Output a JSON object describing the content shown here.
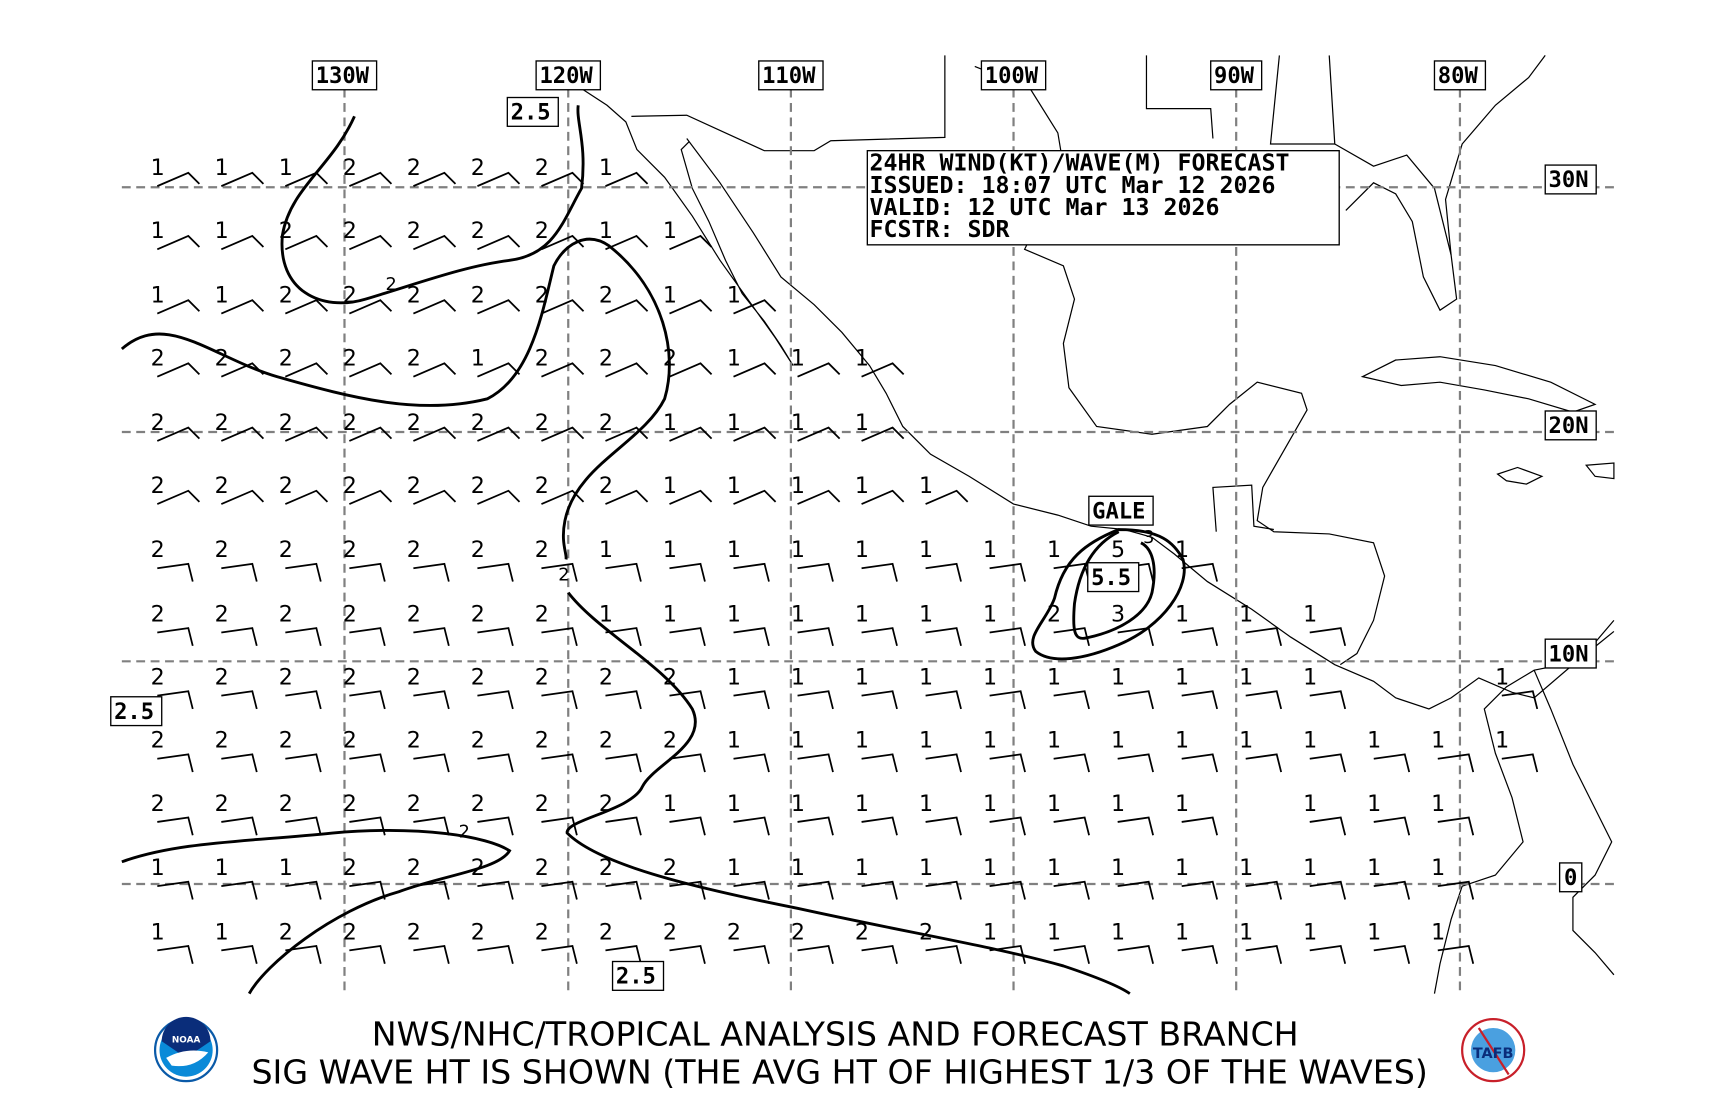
{
  "title_box": {
    "line1": "24HR WIND(KT)/WAVE(M) FORECAST",
    "line2": "ISSUED: 18:07 UTC Mar 12 2026",
    "line3": "VALID: 12 UTC Mar 13 2026",
    "line4": "FCSTR: SDR"
  },
  "footer": {
    "line1": "NWS/NHC/TROPICAL ANALYSIS AND FORECAST BRANCH",
    "line2": "SIG WAVE HT IS SHOWN (THE AVG HT OF HIGHEST 1/3 OF THE WAVES)",
    "logo_left": "NOAA",
    "logo_right": "TAFB"
  },
  "lon_labels": [
    "130W",
    "120W",
    "110W",
    "100W",
    "90W",
    "80W"
  ],
  "lat_labels": [
    "30N",
    "20N",
    "10N",
    "0"
  ],
  "area_labels": {
    "wave_2_5_a": "2.5",
    "wave_2_5_b": "2.5",
    "wave_2_5_c": "2.5",
    "max_wave": "5.5",
    "warning": "GALE"
  },
  "contour_labels": [
    "2",
    "2",
    "2",
    "3",
    "5",
    "3"
  ],
  "wave_heights_m": [
    [
      "1",
      "1",
      "1",
      "2",
      "2",
      "2",
      "2",
      "1"
    ],
    [
      "1",
      "1",
      "2",
      "2",
      "2",
      "2",
      "2",
      "1",
      "1"
    ],
    [
      "1",
      "1",
      "2",
      "2",
      "2",
      "2",
      "2",
      "2",
      "1",
      "1"
    ],
    [
      "2",
      "2",
      "2",
      "2",
      "2",
      "1",
      "2",
      "2",
      "2",
      "1",
      "1",
      "1"
    ],
    [
      "2",
      "2",
      "2",
      "2",
      "2",
      "2",
      "2",
      "2",
      "1",
      "1",
      "1",
      "1"
    ],
    [
      "2",
      "2",
      "2",
      "2",
      "2",
      "2",
      "2",
      "2",
      "1",
      "1",
      "1",
      "1",
      "1"
    ],
    [
      "2",
      "2",
      "2",
      "2",
      "2",
      "2",
      "2",
      "1",
      "1",
      "1",
      "1",
      "1",
      "1",
      "1",
      "1",
      "5",
      "1"
    ],
    [
      "2",
      "2",
      "2",
      "2",
      "2",
      "2",
      "2",
      "1",
      "1",
      "1",
      "1",
      "1",
      "1",
      "1",
      "2",
      "3",
      "1",
      "1",
      "1"
    ],
    [
      "2",
      "2",
      "2",
      "2",
      "2",
      "2",
      "2",
      "2",
      "2",
      "1",
      "1",
      "1",
      "1",
      "1",
      "1",
      "1",
      "1",
      "1",
      "1",
      null,
      null,
      "1"
    ],
    [
      "2",
      "2",
      "2",
      "2",
      "2",
      "2",
      "2",
      "2",
      "2",
      "1",
      "1",
      "1",
      "1",
      "1",
      "1",
      "1",
      "1",
      "1",
      "1",
      "1",
      "1",
      "1"
    ],
    [
      "2",
      "2",
      "2",
      "2",
      "2",
      "2",
      "2",
      "2",
      "1",
      "1",
      "1",
      "1",
      "1",
      "1",
      "1",
      "1",
      "1",
      null,
      "1",
      "1",
      "1"
    ],
    [
      "1",
      "1",
      "1",
      "2",
      "2",
      "2",
      "2",
      "2",
      "2",
      "1",
      "1",
      "1",
      "1",
      "1",
      "1",
      "1",
      "1",
      "1",
      "1",
      "1",
      "1"
    ],
    [
      "1",
      "1",
      "2",
      "2",
      "2",
      "2",
      "2",
      "2",
      "2",
      "2",
      "2",
      "2",
      "2",
      "1",
      "1",
      "1",
      "1",
      "1",
      "1",
      "1",
      "1"
    ]
  ],
  "colors": {
    "grid": "#808080",
    "noaa_blue": "#0a5aa8",
    "tafb_red": "#c8202a"
  }
}
